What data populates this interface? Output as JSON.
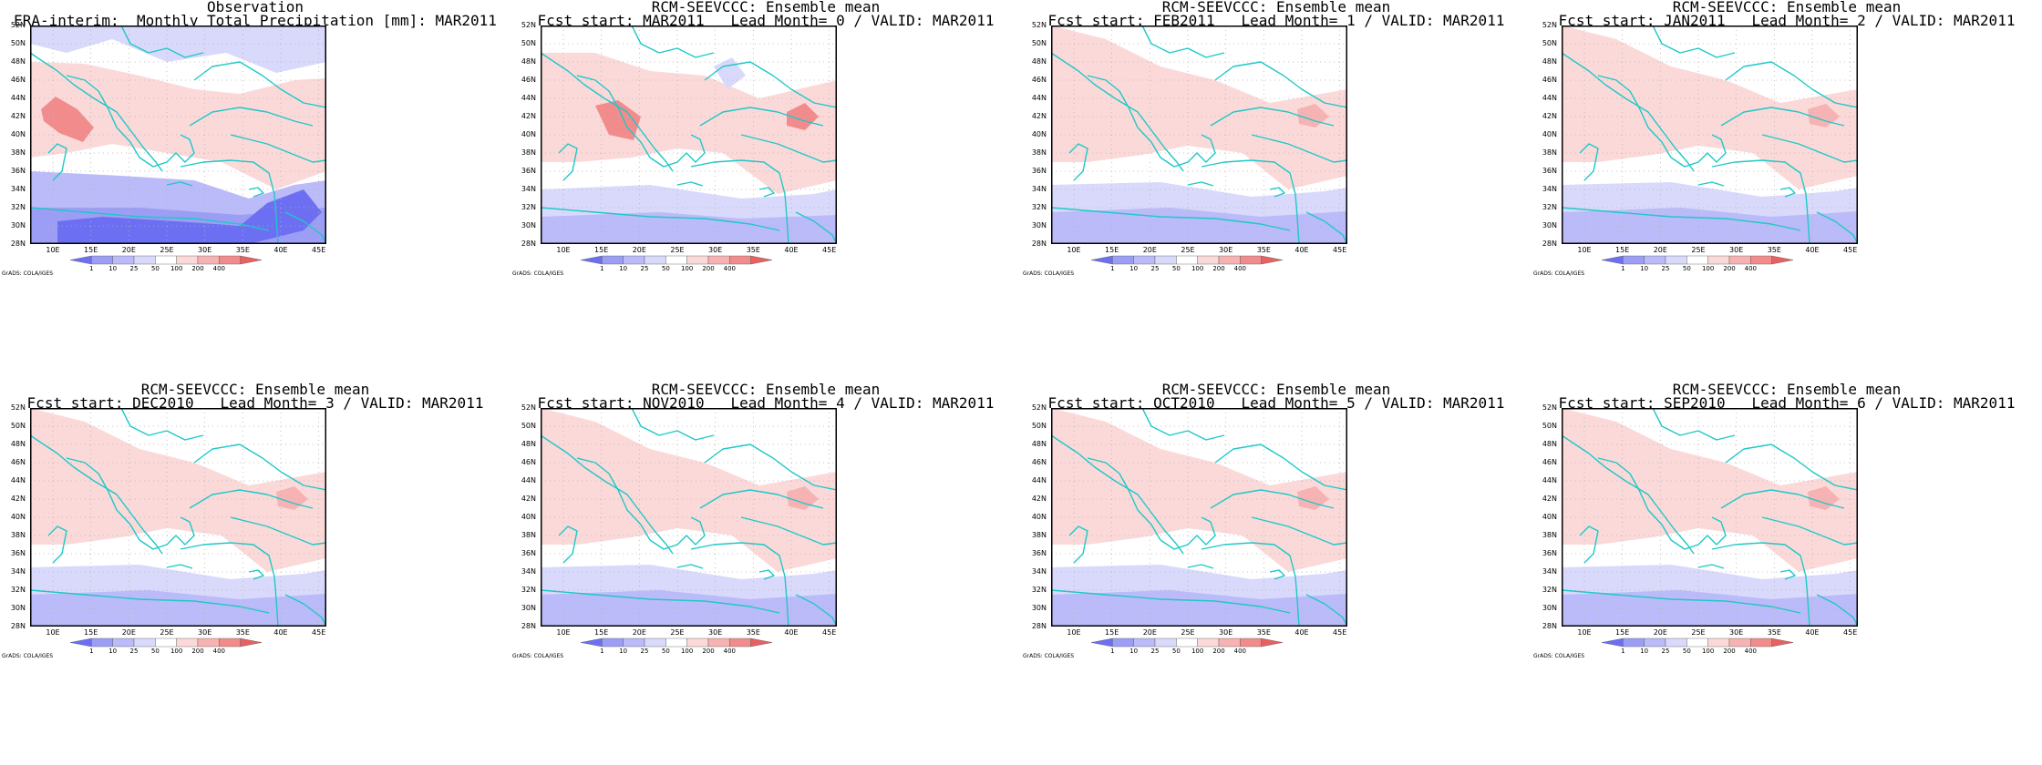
{
  "colors": {
    "blue_light": "#d9d9fb",
    "blue_mid": "#babbf8",
    "blue_strong": "#9c9ef5",
    "blue_deep": "#6d6ff2",
    "red_light": "#fbd9d9",
    "red_mid": "#f7b3b3",
    "red_strong": "#f28c8c",
    "coast": "#1ec8c8",
    "grid": "#b4b4b4"
  },
  "axes": {
    "lat_labels": [
      "52N",
      "50N",
      "48N",
      "46N",
      "44N",
      "42N",
      "40N",
      "38N",
      "36N",
      "34N",
      "32N",
      "30N",
      "28N"
    ],
    "lon_labels": [
      "10E",
      "15E",
      "20E",
      "25E",
      "30E",
      "35E",
      "40E",
      "45E"
    ],
    "lat_range": [
      28,
      52
    ],
    "lon_range": [
      7,
      46
    ]
  },
  "colorbar": {
    "ticks": [
      "1",
      "10",
      "25",
      "50",
      "100",
      "200",
      "400"
    ],
    "colors": [
      "#6d6ff2",
      "#9c9ef5",
      "#babbf8",
      "#d9d9fb",
      "#ffffff",
      "#fbd9d9",
      "#f7b3b3",
      "#f28c8c",
      "#e86060"
    ]
  },
  "grads_credit": "GrADS: COLA/IGES",
  "panels": [
    {
      "title1": "Observation",
      "title2": "ERA-interim:  Monthly Total Precipitation [mm]: MAR2011",
      "kind": "obs"
    },
    {
      "title1": "RCM-SEEVCCC: Ensemble mean",
      "title2": "Fcst start: MAR2011   Lead Month= 0 / VALID: MAR2011",
      "kind": "fc0"
    },
    {
      "title1": "RCM-SEEVCCC: Ensemble mean",
      "title2": "Fcst start: FEB2011   Lead Month= 1 / VALID: MAR2011",
      "kind": "fc"
    },
    {
      "title1": "RCM-SEEVCCC: Ensemble mean",
      "title2": "Fcst start: JAN2011   Lead Month= 2 / VALID: MAR2011",
      "kind": "fc"
    },
    {
      "title1": "RCM-SEEVCCC: Ensemble mean",
      "title2": "Fcst start: DEC2010   Lead Month= 3 / VALID: MAR2011",
      "kind": "fc"
    },
    {
      "title1": "RCM-SEEVCCC: Ensemble mean",
      "title2": "Fcst start: NOV2010   Lead Month= 4 / VALID: MAR2011",
      "kind": "fc"
    },
    {
      "title1": "RCM-SEEVCCC: Ensemble mean",
      "title2": "Fcst start: OCT2010   Lead Month= 5 / VALID: MAR2011",
      "kind": "fc"
    },
    {
      "title1": "RCM-SEEVCCC: Ensemble mean",
      "title2": "Fcst start: SEP2010   Lead Month= 6 / VALID: MAR2011",
      "kind": "fc"
    }
  ]
}
